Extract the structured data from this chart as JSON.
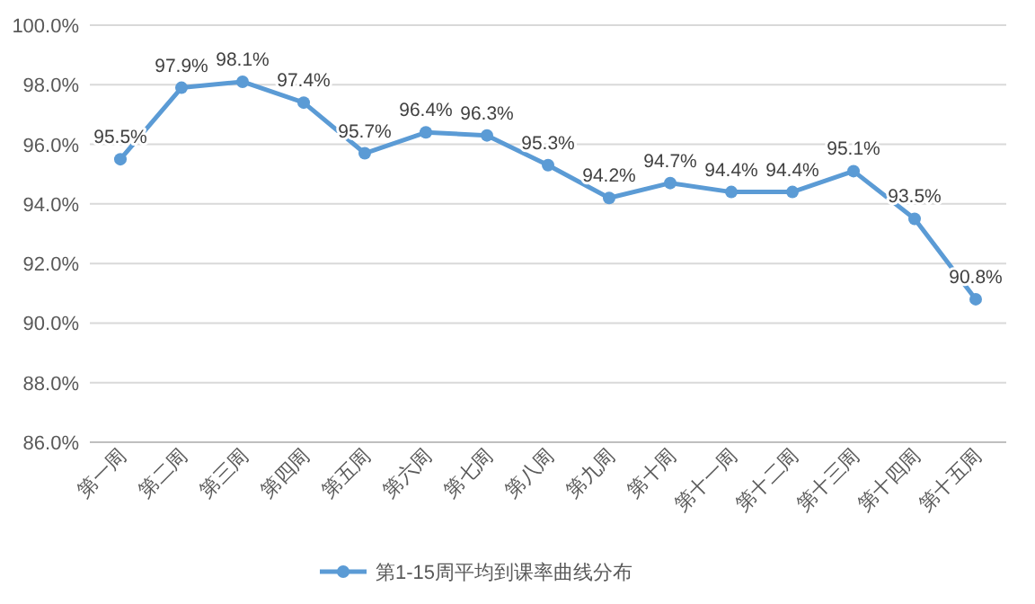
{
  "chart_data": {
    "type": "line",
    "categories": [
      "第一周",
      "第二周",
      "第三周",
      "第四周",
      "第五周",
      "第六周",
      "第七周",
      "第八周",
      "第九周",
      "第十周",
      "第十一周",
      "第十二周",
      "第十三周",
      "第十四周",
      "第十五周"
    ],
    "series": [
      {
        "name": "第1-15周平均到课率曲线分布",
        "color": "#5b9bd5",
        "values": [
          95.5,
          97.9,
          98.1,
          97.4,
          95.7,
          96.4,
          96.3,
          95.3,
          94.2,
          94.7,
          94.4,
          94.4,
          95.1,
          93.5,
          90.8
        ],
        "value_labels": [
          "95.5%",
          "97.9%",
          "98.1%",
          "97.4%",
          "95.7%",
          "96.4%",
          "96.3%",
          "95.3%",
          "94.2%",
          "94.7%",
          "94.4%",
          "94.4%",
          "95.1%",
          "93.5%",
          "90.8%"
        ]
      }
    ],
    "ylim": [
      86,
      100
    ],
    "yticks": [
      {
        "value": 86,
        "label": "86.0%"
      },
      {
        "value": 88,
        "label": "88.0%"
      },
      {
        "value": 90,
        "label": "90.0%"
      },
      {
        "value": 92,
        "label": "92.0%"
      },
      {
        "value": 94,
        "label": "94.0%"
      },
      {
        "value": 96,
        "label": "96.0%"
      },
      {
        "value": 98,
        "label": "98.0%"
      },
      {
        "value": 100,
        "label": "100.0%"
      }
    ],
    "grid": "y",
    "legend": "bottom",
    "marker": "circle",
    "line_style": "solid"
  }
}
